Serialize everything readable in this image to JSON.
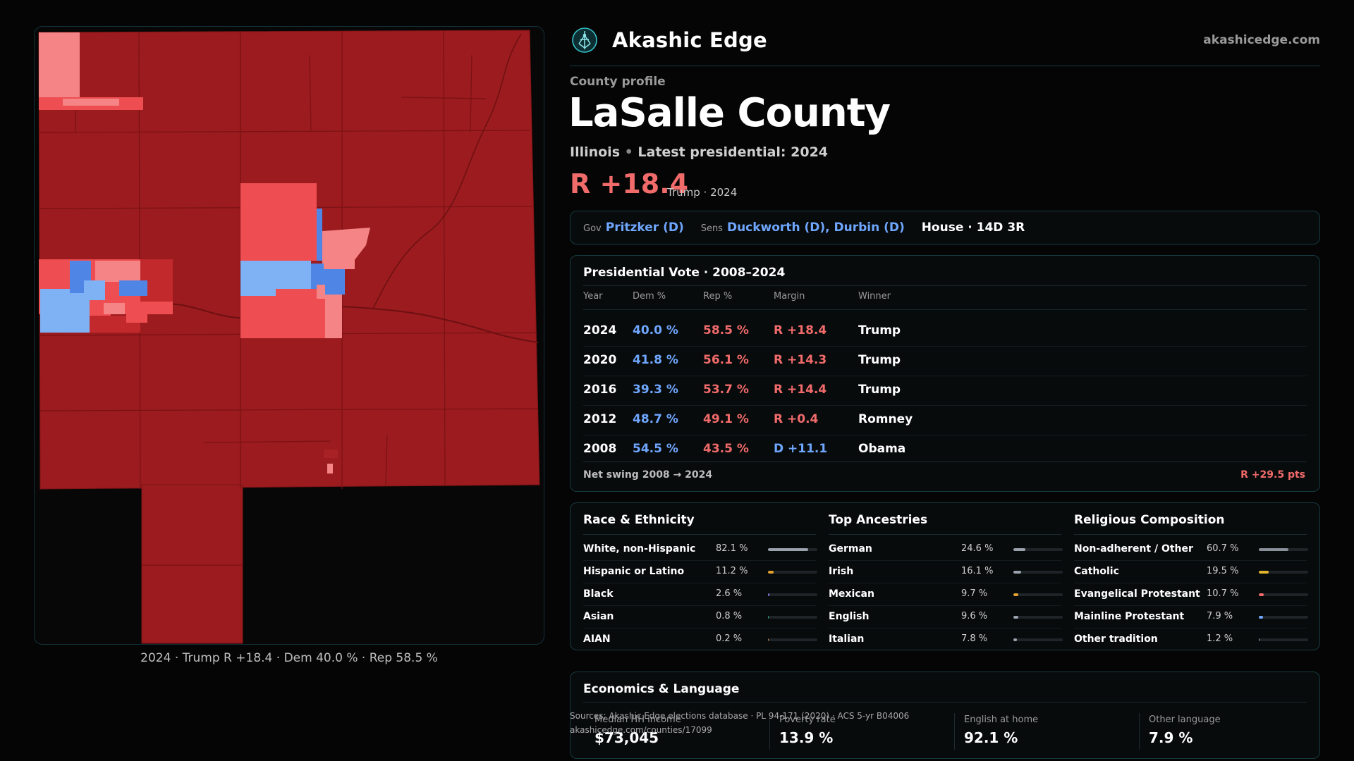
{
  "header": {
    "brand": "Akashic Edge",
    "site": "akashicedge.com",
    "logo_icon": "tree-of-life-icon",
    "accent": "#34c3c9"
  },
  "profile": {
    "eyebrow": "County profile",
    "county": "LaSalle County",
    "state": "Illinois",
    "latest": "Latest presidential: 2024",
    "margin": "R +18.4",
    "margin_note": "Trump · 2024"
  },
  "officials": {
    "gov_label": "Gov",
    "gov": "Pritzker (D)",
    "sens_label": "Sens",
    "sens": "Duckworth (D), Durbin (D)",
    "house": "House · 14D 3R"
  },
  "presidential": {
    "title": "Presidential Vote · 2008–2024",
    "columns": [
      "Year",
      "Dem %",
      "Rep %",
      "Margin",
      "Winner"
    ],
    "rows": [
      {
        "year": "2024",
        "dem": "40.0 %",
        "rep": "58.5 %",
        "margin": "R +18.4",
        "winner": "Trump",
        "party": "R"
      },
      {
        "year": "2020",
        "dem": "41.8 %",
        "rep": "56.1 %",
        "margin": "R +14.3",
        "winner": "Trump",
        "party": "R"
      },
      {
        "year": "2016",
        "dem": "39.3 %",
        "rep": "53.7 %",
        "margin": "R +14.4",
        "winner": "Trump",
        "party": "R"
      },
      {
        "year": "2012",
        "dem": "48.7 %",
        "rep": "49.1 %",
        "margin": "R +0.4",
        "winner": "Romney",
        "party": "R"
      },
      {
        "year": "2008",
        "dem": "54.5 %",
        "rep": "43.5 %",
        "margin": "D +11.1",
        "winner": "Obama",
        "party": "D"
      }
    ],
    "swing_label": "Net swing 2008 → 2024",
    "swing_value": "R +29.5 pts"
  },
  "race": {
    "title": "Race & Ethnicity",
    "items": [
      {
        "label": "White, non-Hispanic",
        "pct": "82.1 %",
        "value": 82.1,
        "color": "#9aa3ad"
      },
      {
        "label": "Hispanic or Latino",
        "pct": "11.2 %",
        "value": 11.2,
        "color": "#e3a12f"
      },
      {
        "label": "Black",
        "pct": "2.6 %",
        "value": 2.6,
        "color": "#8e7cf0"
      },
      {
        "label": "Asian",
        "pct": "0.8 %",
        "value": 0.8,
        "color": "#34c3a4"
      },
      {
        "label": "AIAN",
        "pct": "0.2 %",
        "value": 0.2,
        "color": "#c98a5a"
      }
    ]
  },
  "ancestry": {
    "title": "Top Ancestries",
    "items": [
      {
        "label": "German",
        "pct": "24.6 %",
        "value": 24.6,
        "color": "#9aa3ad"
      },
      {
        "label": "Irish",
        "pct": "16.1 %",
        "value": 16.1,
        "color": "#9aa3ad"
      },
      {
        "label": "Mexican",
        "pct": "9.7 %",
        "value": 9.7,
        "color": "#e3a12f"
      },
      {
        "label": "English",
        "pct": "9.6 %",
        "value": 9.6,
        "color": "#9aa3ad"
      },
      {
        "label": "Italian",
        "pct": "7.8 %",
        "value": 7.8,
        "color": "#9aa3ad"
      }
    ]
  },
  "religion": {
    "title": "Religious Composition",
    "items": [
      {
        "label": "Non-adherent / Other",
        "pct": "60.7 %",
        "value": 60.7,
        "color": "#8a9199"
      },
      {
        "label": "Catholic",
        "pct": "19.5 %",
        "value": 19.5,
        "color": "#e3b52f"
      },
      {
        "label": "Evangelical Protestant",
        "pct": "10.7 %",
        "value": 10.7,
        "color": "#f26b6b"
      },
      {
        "label": "Mainline Protestant",
        "pct": "7.9 %",
        "value": 7.9,
        "color": "#6fa7ff"
      },
      {
        "label": "Other tradition",
        "pct": "1.2 %",
        "value": 1.2,
        "color": "#bdbdbd"
      }
    ]
  },
  "economics": {
    "title": "Economics & Language",
    "stats": [
      {
        "label": "Median HH income",
        "value": "$73,045"
      },
      {
        "label": "Poverty rate",
        "value": "13.9 %"
      },
      {
        "label": "English at home",
        "value": "92.1 %"
      },
      {
        "label": "Other language",
        "value": "7.9 %"
      }
    ]
  },
  "sources": {
    "line1": "Sources: Akashic Edge elections database · PL 94-171 (2020) · ACS 5-yr B04006",
    "line2": "akashicedge.com/counties/17099"
  },
  "map": {
    "caption": "2024 · Trump  R +18.4 · Dem 40.0 % · Rep 58.5 %",
    "colors": {
      "strong_r": "#9b1b1e",
      "lean_r": "#ee4e51",
      "light_r": "#f58486",
      "lean_d": "#4f86e6",
      "light_d": "#7fb1f5"
    }
  }
}
